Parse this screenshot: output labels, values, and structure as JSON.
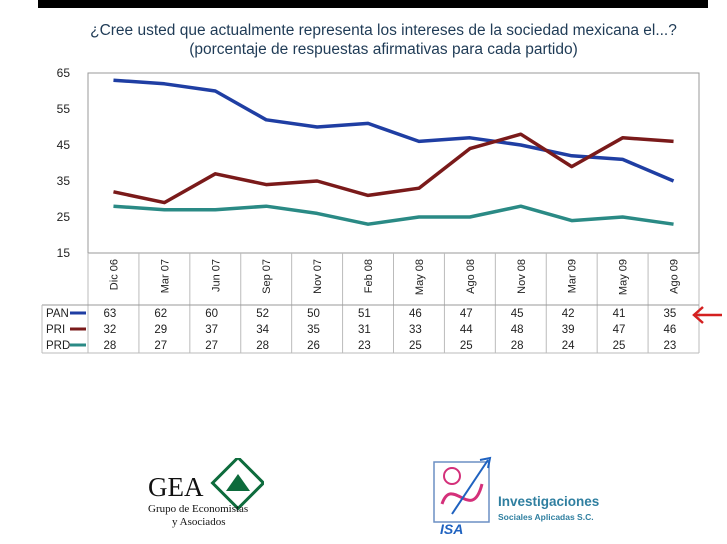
{
  "header": {
    "title_line1": "¿Cree usted que actualmente representa los intereses de la sociedad mexicana el...?",
    "title_line2": "(porcentaje de respuestas afirmativas para cada partido)"
  },
  "chart_data": {
    "type": "line",
    "title": "¿Cree usted que actualmente representa los intereses de la sociedad mexicana el...?",
    "subtitle": "(porcentaje de respuestas afirmativas para cada partido)",
    "categories": [
      "Dic 06",
      "Mar 07",
      "Jun 07",
      "Sep 07",
      "Nov 07",
      "Feb 08",
      "May 08",
      "Ago 08",
      "Nov 08",
      "Mar 09",
      "May 09",
      "Ago 09"
    ],
    "yticks": [
      15,
      25,
      35,
      45,
      55,
      65
    ],
    "ylim": [
      15,
      65
    ],
    "grid": false,
    "series": [
      {
        "name": "PAN",
        "color": "#1f3ea3",
        "values": [
          63,
          62,
          60,
          52,
          50,
          51,
          46,
          47,
          45,
          42,
          41,
          35
        ]
      },
      {
        "name": "PRI",
        "color": "#7a1a1a",
        "values": [
          32,
          29,
          37,
          34,
          35,
          31,
          33,
          44,
          48,
          39,
          47,
          46
        ]
      },
      {
        "name": "PRD",
        "color": "#2a8a85",
        "values": [
          28,
          27,
          27,
          28,
          26,
          23,
          25,
          25,
          28,
          24,
          25,
          23
        ]
      }
    ]
  },
  "logos": {
    "gea": {
      "name": "GEA",
      "line1": "Grupo de Economistas",
      "line2": "y Asociados"
    },
    "isa": {
      "mark": "ISA",
      "line1": "Investigaciones",
      "line2": "Sociales Aplicadas S.C.",
      "color": "#2f7fa0"
    }
  },
  "icons": {
    "pointer": "left-arrow-icon",
    "pointer_color": "#d42020"
  }
}
